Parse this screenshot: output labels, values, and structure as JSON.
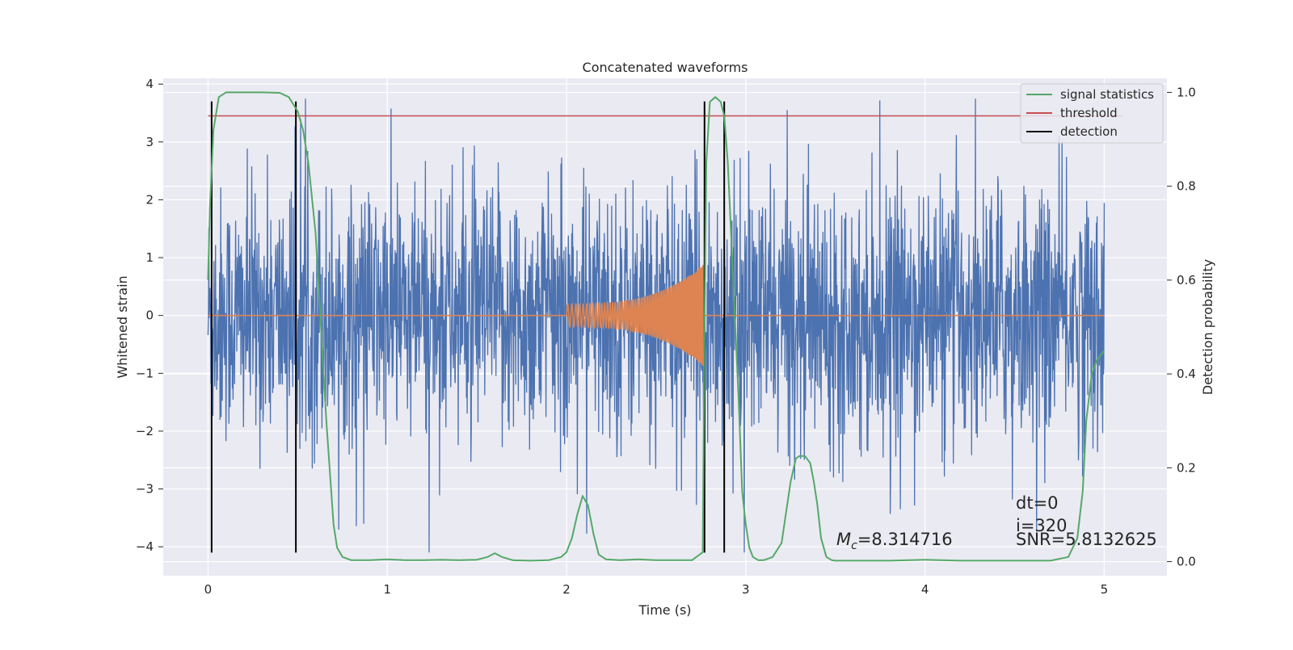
{
  "chart_data": {
    "type": "line",
    "title": "Concatenated waveforms",
    "xlabel": "Time (s)",
    "ylabel": "Whitened strain",
    "y2label": "Detection probability",
    "xlim": [
      -0.25,
      5.35
    ],
    "ylim": [
      -4.5,
      4.1
    ],
    "y2lim": [
      -0.03,
      1.03
    ],
    "xticks": [
      0,
      1,
      2,
      3,
      4,
      5
    ],
    "yticks": [
      -4,
      -3,
      -2,
      -1,
      0,
      1,
      2,
      3,
      4
    ],
    "y2ticks": [
      0.0,
      0.2,
      0.4,
      0.6,
      0.8,
      1.0
    ],
    "grid": true,
    "legend_placement": "upper right",
    "colors": {
      "background": "#eaeaf2",
      "grid": "#ffffff",
      "noise": "#4c72b0",
      "template": "#dd8452",
      "signal_statistics": "#55a868",
      "threshold": "#c44e52",
      "detection": "#000000"
    },
    "series": [
      {
        "name": "signal statistics",
        "axis": "right",
        "style": "line",
        "x": [
          0.0,
          0.01,
          0.03,
          0.06,
          0.1,
          0.2,
          0.3,
          0.4,
          0.45,
          0.5,
          0.53,
          0.56,
          0.6,
          0.63,
          0.66,
          0.7,
          0.72,
          0.75,
          0.8,
          0.9,
          1.0,
          1.1,
          1.2,
          1.3,
          1.4,
          1.5,
          1.56,
          1.6,
          1.64,
          1.7,
          1.8,
          1.9,
          1.97,
          2.0,
          2.03,
          2.06,
          2.09,
          2.12,
          2.15,
          2.18,
          2.22,
          2.3,
          2.4,
          2.5,
          2.6,
          2.7,
          2.76,
          2.77,
          2.78,
          2.8,
          2.83,
          2.86,
          2.88,
          2.9,
          2.93,
          2.96,
          2.98,
          3.0,
          3.02,
          3.04,
          3.07,
          3.1,
          3.15,
          3.2,
          3.25,
          3.28,
          3.3,
          3.33,
          3.36,
          3.38,
          3.4,
          3.42,
          3.45,
          3.48,
          3.5,
          3.6,
          3.8,
          4.0,
          4.2,
          4.5,
          4.7,
          4.8,
          4.85,
          4.88,
          4.9,
          4.93,
          4.96,
          5.0
        ],
        "values": [
          0.6,
          0.75,
          0.92,
          0.99,
          1.0,
          1.0,
          1.0,
          0.999,
          0.99,
          0.96,
          0.92,
          0.85,
          0.7,
          0.5,
          0.3,
          0.08,
          0.03,
          0.01,
          0.003,
          0.003,
          0.005,
          0.003,
          0.003,
          0.004,
          0.003,
          0.004,
          0.01,
          0.018,
          0.01,
          0.003,
          0.002,
          0.003,
          0.01,
          0.02,
          0.05,
          0.1,
          0.14,
          0.12,
          0.06,
          0.015,
          0.005,
          0.003,
          0.005,
          0.003,
          0.003,
          0.003,
          0.02,
          0.5,
          0.85,
          0.98,
          0.99,
          0.98,
          0.95,
          0.85,
          0.6,
          0.35,
          0.15,
          0.08,
          0.03,
          0.01,
          0.003,
          0.003,
          0.01,
          0.04,
          0.17,
          0.22,
          0.225,
          0.225,
          0.21,
          0.17,
          0.12,
          0.05,
          0.01,
          0.003,
          0.002,
          0.002,
          0.002,
          0.004,
          0.002,
          0.002,
          0.002,
          0.01,
          0.05,
          0.15,
          0.3,
          0.4,
          0.43,
          0.45
        ]
      },
      {
        "name": "threshold",
        "axis": "right",
        "style": "hline",
        "value": 0.95,
        "x": [
          0.0,
          5.1
        ]
      },
      {
        "name": "detection",
        "axis": "left",
        "style": "vlines",
        "x": [
          0.02,
          0.49,
          2.77,
          2.88
        ],
        "ymin": -4.1,
        "ymax": 3.7
      },
      {
        "name": "",
        "axis": "left",
        "style": "noise",
        "amplitude": 1.4,
        "x": [
          0.0,
          5.0
        ]
      },
      {
        "name": "",
        "axis": "left",
        "style": "chirp",
        "x": [
          2.0,
          2.77
        ],
        "amplitude_start": 0.2,
        "amplitude_end": 0.9
      }
    ],
    "legend": [
      "signal statistics",
      "threshold",
      "detection"
    ],
    "annotations": {
      "chirp_mass": "=8.314716",
      "dt": "dt=0",
      "index": "i=320",
      "snr": "SNR=5.8132625"
    }
  }
}
